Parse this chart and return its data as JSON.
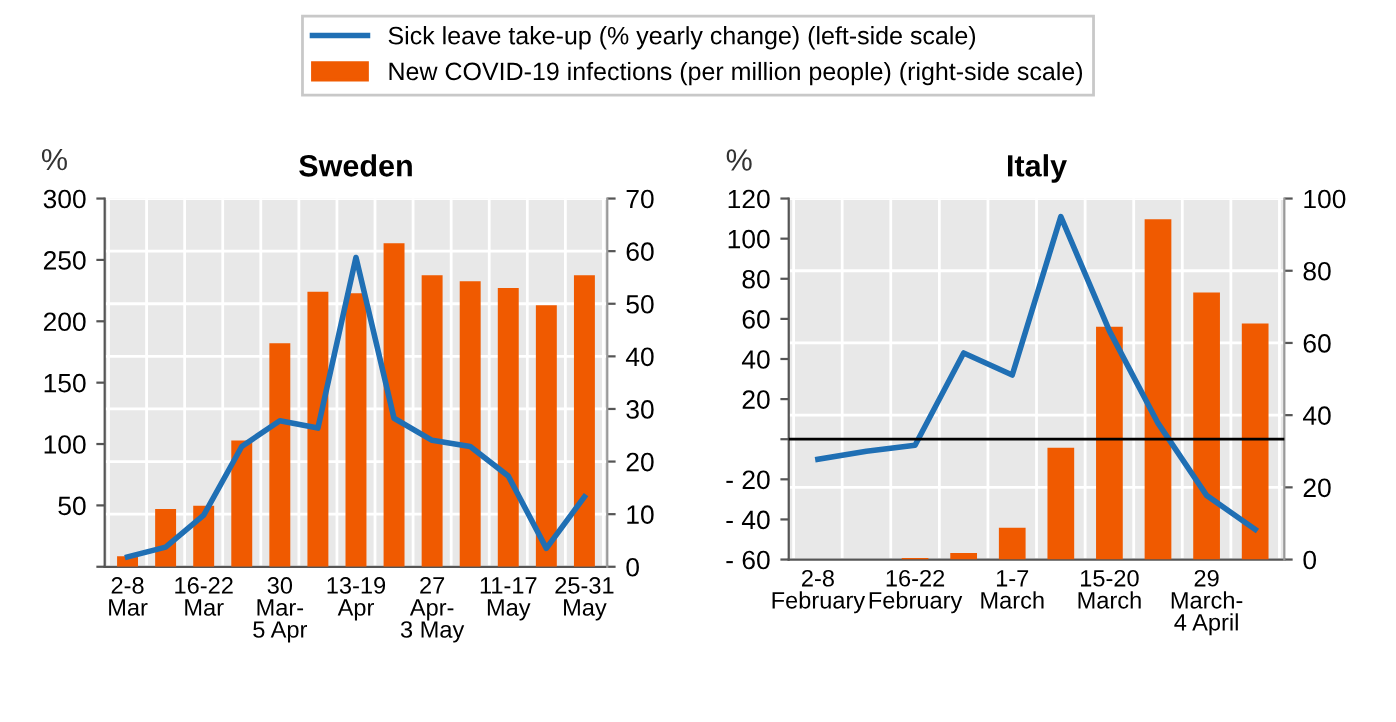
{
  "chart_data": [
    {
      "type": "bar",
      "title": "Sweden",
      "ylabel": "%",
      "legend": "top",
      "grid": true,
      "categories": [
        "2-8\nMar",
        null,
        "16-22\nMar",
        null,
        "30\nMar-\n5 Apr",
        null,
        "13-19\nApr",
        null,
        "27\nApr-\n3 May",
        null,
        "11-17\nMay",
        null,
        "25-31\nMay"
      ],
      "series": [
        {
          "name": "Sick leave take-up (% yearly change) (left-side scale)",
          "type": "line",
          "axis": "y",
          "color": "#1f6fb4",
          "values": [
            8,
            16,
            42,
            98,
            119,
            113,
            252,
            121,
            103,
            98,
            74,
            15,
            57
          ]
        },
        {
          "name": "New COVID-19 infections (per million people) (right-side scale)",
          "axis": "y2",
          "color": "#f05a00",
          "values": [
            2,
            11,
            11.6,
            24,
            42.5,
            52.3,
            52,
            61.5,
            55.4,
            54.3,
            53,
            49.7,
            55.4
          ]
        }
      ],
      "ylim": [
        0,
        300
      ],
      "yticks": [
        {
          "value": 0,
          "label": null
        },
        50,
        100,
        150,
        200,
        250,
        300
      ],
      "y2lim": [
        0,
        70
      ],
      "y2ticks": [
        0,
        10,
        20,
        30,
        40,
        50,
        60,
        70
      ]
    },
    {
      "type": "bar",
      "title": "Italy",
      "ylabel": "%",
      "grid": true,
      "categories": [
        "2-8\nFebruary",
        null,
        "16-22\nFebruary",
        null,
        "1-7\nMarch",
        null,
        "15-20\nMarch",
        null,
        "29\nMarch-\n4 April",
        null
      ],
      "series": [
        {
          "type": "line",
          "axis": "y",
          "color": "#1f6fb4",
          "values": [
            -10,
            -6,
            -3,
            43,
            32,
            111,
            54,
            8,
            -28,
            -45
          ]
        },
        {
          "axis": "y2",
          "color": "#f05a00",
          "values": [
            0,
            0,
            0.4,
            1.8,
            8.8,
            31,
            64.5,
            94.3,
            74,
            65.4
          ]
        }
      ],
      "ylim": [
        -60,
        120
      ],
      "yticks": [
        {
          "value": -60,
          "label": "- 60"
        },
        {
          "value": -40,
          "label": "- 40"
        },
        {
          "value": -20,
          "label": "- 20"
        },
        {
          "value": 0,
          "label": null
        },
        20,
        40,
        60,
        80,
        100,
        120
      ],
      "y2lim": [
        0,
        100
      ],
      "y2ticks": [
        0,
        20,
        40,
        60,
        80,
        100
      ],
      "ref_lines": [
        {
          "axis": "y",
          "value": 0,
          "color": "#000000"
        }
      ]
    }
  ]
}
